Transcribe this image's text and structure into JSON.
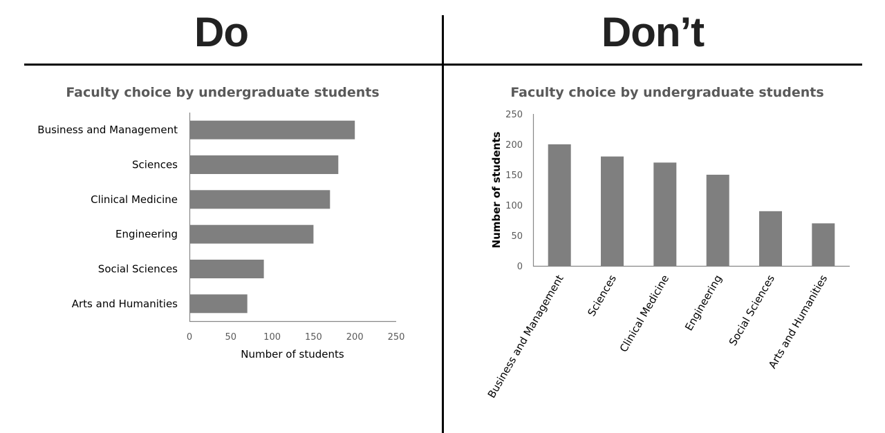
{
  "headings": {
    "do": "Do",
    "dont": "Don’t"
  },
  "colors": {
    "bar": "#7f7f7f",
    "axis": "#868686",
    "title": "#595959",
    "heading": "#222222",
    "rule": "#000000"
  },
  "chart_data": [
    {
      "panel": "Do",
      "type": "bar",
      "orientation": "horizontal",
      "title": "Faculty choice by undergraduate students",
      "categories": [
        "Business and Management",
        "Sciences",
        "Clinical Medicine",
        "Engineering",
        "Social Sciences",
        "Arts and Humanities"
      ],
      "values": [
        200,
        180,
        170,
        150,
        90,
        70
      ],
      "xlabel": "Number of students",
      "ylabel": "",
      "xlim": [
        0,
        250
      ],
      "xticks": [
        "0",
        "50",
        "100",
        "150",
        "200",
        "250"
      ],
      "grid": false,
      "legend": "none"
    },
    {
      "panel": "Don’t",
      "type": "bar",
      "orientation": "vertical",
      "title": "Faculty choice by undergraduate students",
      "categories": [
        "Business and Management",
        "Sciences",
        "Clinical Medicine",
        "Engineering",
        "Social Sciences",
        "Arts and Humanities"
      ],
      "values": [
        200,
        180,
        170,
        150,
        90,
        70
      ],
      "xlabel": "",
      "ylabel": "Number of students",
      "ylim": [
        0,
        250
      ],
      "yticks": [
        "0",
        "50",
        "100",
        "150",
        "200",
        "250"
      ],
      "category_label_rotation": -60,
      "grid": false,
      "legend": "none"
    }
  ]
}
